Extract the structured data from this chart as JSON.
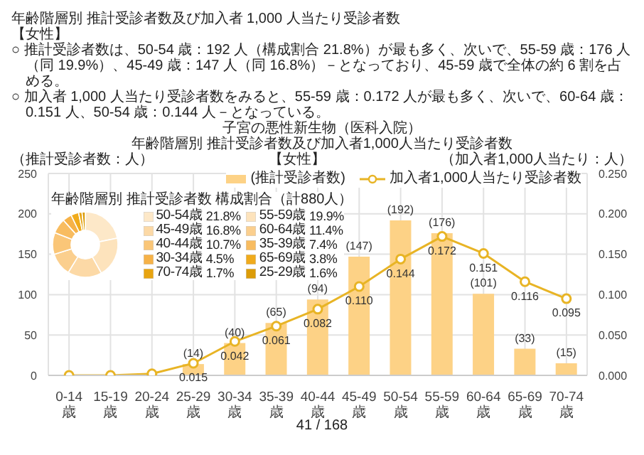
{
  "chart_data": [
    {
      "type": "bar",
      "title": "子宮の悪性新生物（医科入院）",
      "subtitle": "年齢階層別 推計受診者数及び加入者1,000人当たり受診者数",
      "ylabel": "（推計受診者数：人）",
      "y2label": "（加入者1,000人当たり：人）",
      "annotations": [
        "年齢階層別 推計受診者数及び加入者 1,000 人当たり受診者数",
        "【女性】",
        "○ 推計受診者数は、50-54 歳：192 人（構成割合 21.8%）が最も多く、次いで、55-59 歳：176 人（同 19.9%）、45-49 歳：147 人（同 16.8%）－となっており、45-59 歳で全体の約 6 割を占める。",
        "○ 加入者 1,000 人当たり受診者数をみると、55-59 歳：0.172 人が最も多く、次いで、60-64 歳：0.151 人、50-54 歳：0.144 人－となっている。",
        "【女性】",
        "41 / 168"
      ],
      "categories": [
        "0-14歳",
        "15-19歳",
        "20-24歳",
        "25-29歳",
        "30-34歳",
        "35-39歳",
        "40-44歳",
        "45-49歳",
        "50-54歳",
        "55-59歳",
        "60-64歳",
        "65-69歳",
        "70-74歳"
      ],
      "series": [
        {
          "name": "(推計受診者数)",
          "color": "#fdd286",
          "values": [
            null,
            null,
            null,
            14,
            40,
            65,
            94,
            147,
            192,
            176,
            101,
            33,
            15
          ],
          "value_labels": [
            null,
            null,
            null,
            "(14)",
            "(40)",
            "(65)",
            "(94)",
            "(147)",
            "(192)",
            "(176)",
            "(101)",
            "(33)",
            "(15)"
          ]
        },
        {
          "name": "加入者1,000人当たり受診者数",
          "type": "line",
          "axis": "y2",
          "color": "#e8b425",
          "marker": "circle",
          "values": [
            0,
            0,
            0.002,
            0.015,
            0.042,
            0.061,
            0.082,
            0.11,
            0.144,
            0.172,
            0.151,
            0.116,
            0.095
          ],
          "value_labels": [
            null,
            null,
            null,
            "0.015",
            "0.042",
            "0.061",
            "0.082",
            "0.110",
            "0.144",
            "0.172",
            "0.151",
            "0.116",
            "0.095"
          ]
        }
      ],
      "ylim": [
        0,
        250
      ],
      "yticks": [
        0,
        50,
        100,
        150,
        200,
        250
      ],
      "y2lim": [
        0,
        0.25
      ],
      "y2ticks": [
        {
          "value": 0,
          "label": "0.000"
        },
        {
          "value": 0.05,
          "label": "0.050"
        },
        {
          "value": 0.1,
          "label": "0.100"
        },
        {
          "value": 0.15,
          "label": "0.150"
        },
        {
          "value": 0.2,
          "label": "0.200"
        },
        {
          "value": 0.25,
          "label": "0.250"
        }
      ],
      "grid": true,
      "legend": "top right"
    },
    {
      "type": "donut",
      "title": "年齢階層別 推計受診者数 構成割合（計880人）",
      "categories": [
        "50-54歳",
        "55-59歳",
        "45-49歳",
        "60-64歳",
        "40-44歳",
        "35-39歳",
        "30-34歳",
        "65-69歳",
        "70-74歳",
        "25-29歳"
      ],
      "values": [
        21.8,
        19.9,
        16.8,
        11.4,
        10.7,
        7.4,
        4.5,
        3.8,
        1.7,
        1.6
      ],
      "colors": [
        "#fde8c8",
        "#fde3bc",
        "#fcd9a6",
        "#fbcf8e",
        "#fac678",
        "#f8bc60",
        "#f6b248",
        "#f0ab1c",
        "#e8a410",
        "#dc9c08"
      ],
      "value_labels": [
        "21.8%",
        "19.9%",
        "16.8%",
        "11.4%",
        "10.7%",
        "7.4%",
        "4.5%",
        "3.8%",
        "1.7%",
        "1.6%"
      ],
      "legend": "right"
    }
  ]
}
